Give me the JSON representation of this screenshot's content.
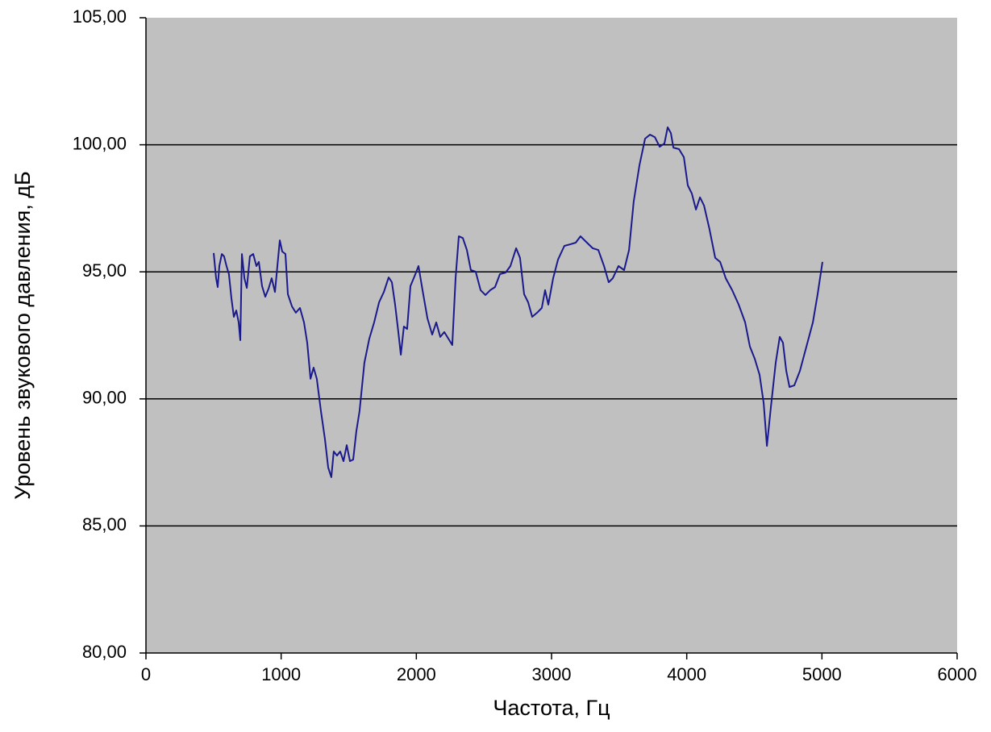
{
  "chart_data": {
    "type": "line",
    "xlabel": "Частота, Гц",
    "ylabel": "Уровень звукового давления, дБ",
    "xlim": [
      0,
      6000
    ],
    "xticks": [
      0,
      1000,
      2000,
      3000,
      4000,
      5000,
      6000
    ],
    "ylim": [
      80,
      105
    ],
    "yticks": [
      {
        "value": 80,
        "label": "80,00"
      },
      {
        "value": 85,
        "label": "85,00"
      },
      {
        "value": 90,
        "label": "90,00"
      },
      {
        "value": 95,
        "label": "95,00"
      },
      {
        "value": 100,
        "label": "100,00"
      },
      {
        "value": 105,
        "label": "105,00"
      }
    ],
    "grid": true,
    "plot_background": "#c0c0c0",
    "x": [
      501,
      519,
      531,
      543,
      561,
      578,
      596,
      614,
      632,
      650,
      668,
      686,
      698,
      710,
      728,
      746,
      769,
      793,
      817,
      835,
      859,
      883,
      907,
      930,
      954,
      972,
      990,
      1008,
      1032,
      1050,
      1080,
      1109,
      1139,
      1169,
      1193,
      1217,
      1240,
      1264,
      1294,
      1324,
      1348,
      1371,
      1389,
      1413,
      1437,
      1461,
      1485,
      1509,
      1533,
      1556,
      1580,
      1616,
      1652,
      1688,
      1724,
      1760,
      1795,
      1819,
      1843,
      1867,
      1885,
      1908,
      1932,
      1956,
      1986,
      2016,
      2046,
      2082,
      2117,
      2147,
      2177,
      2207,
      2237,
      2266,
      2290,
      2314,
      2344,
      2374,
      2403,
      2439,
      2475,
      2511,
      2547,
      2582,
      2618,
      2660,
      2696,
      2738,
      2767,
      2797,
      2827,
      2857,
      2893,
      2928,
      2952,
      2976,
      3012,
      3048,
      3095,
      3143,
      3179,
      3214,
      3256,
      3304,
      3346,
      3388,
      3423,
      3453,
      3495,
      3537,
      3573,
      3608,
      3650,
      3692,
      3728,
      3764,
      3800,
      3835,
      3859,
      3883,
      3901,
      3943,
      3979,
      4008,
      4038,
      4068,
      4098,
      4128,
      4169,
      4211,
      4247,
      4288,
      4336,
      4384,
      4432,
      4467,
      4503,
      4539,
      4569,
      4593,
      4622,
      4658,
      4688,
      4712,
      4736,
      4760,
      4795,
      4837,
      4885,
      4933,
      4968,
      5004
    ],
    "series": [
      {
        "color": "#1a1a8c",
        "values": [
          95.74,
          94.75,
          94.4,
          95.23,
          95.7,
          95.61,
          95.23,
          94.91,
          93.96,
          93.23,
          93.48,
          93.01,
          92.31,
          95.7,
          94.75,
          94.37,
          95.61,
          95.7,
          95.23,
          95.39,
          94.44,
          94.02,
          94.34,
          94.75,
          94.21,
          95.23,
          96.24,
          95.8,
          95.7,
          94.12,
          93.64,
          93.39,
          93.58,
          93.01,
          92.21,
          90.79,
          91.23,
          90.79,
          89.52,
          88.41,
          87.3,
          86.92,
          87.93,
          87.77,
          87.93,
          87.55,
          88.18,
          87.55,
          87.61,
          88.72,
          89.52,
          91.42,
          92.37,
          93.01,
          93.8,
          94.21,
          94.78,
          94.59,
          93.71,
          92.63,
          91.74,
          92.85,
          92.75,
          94.44,
          94.82,
          95.23,
          94.28,
          93.17,
          92.53,
          93.01,
          92.44,
          92.63,
          92.37,
          92.12,
          94.75,
          96.4,
          96.33,
          95.86,
          95.07,
          95.01,
          94.28,
          94.09,
          94.28,
          94.4,
          94.91,
          94.97,
          95.23,
          95.93,
          95.55,
          94.12,
          93.8,
          93.23,
          93.39,
          93.58,
          94.28,
          93.71,
          94.75,
          95.48,
          96.02,
          96.09,
          96.15,
          96.4,
          96.18,
          95.93,
          95.86,
          95.23,
          94.59,
          94.75,
          95.23,
          95.07,
          95.86,
          97.77,
          99.19,
          100.24,
          100.4,
          100.3,
          99.92,
          100.05,
          100.69,
          100.46,
          99.89,
          99.83,
          99.51,
          98.4,
          98.08,
          97.45,
          97.93,
          97.61,
          96.66,
          95.55,
          95.39,
          94.75,
          94.28,
          93.71,
          93.01,
          92.06,
          91.58,
          90.95,
          89.83,
          88.15,
          89.67,
          91.42,
          92.44,
          92.21,
          91.1,
          90.47,
          90.53,
          91.1,
          92.06,
          93.01,
          94.12,
          95.39
        ]
      }
    ]
  }
}
